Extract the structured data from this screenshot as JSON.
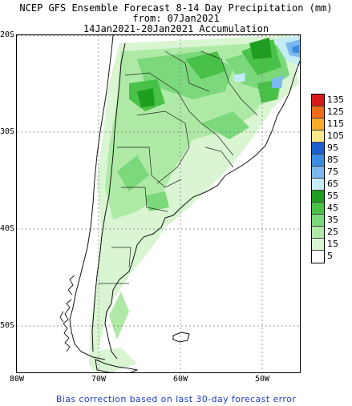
{
  "title": {
    "line1": "NCEP GFS Ensemble Forecast 8-14 Day Precipitation (mm)",
    "line2": "from: 07Jan2021",
    "line3": "14Jan2021-20Jan2021 Accumulation"
  },
  "lat_labels": [
    "20S",
    "30S",
    "40S",
    "50S"
  ],
  "lon_labels": [
    "80W",
    "70W",
    "60W",
    "50W"
  ],
  "legend": {
    "values": [
      "135",
      "125",
      "115",
      "105",
      "95",
      "85",
      "75",
      "65",
      "55",
      "45",
      "35",
      "25",
      "15",
      "5"
    ],
    "colors": [
      "#d61a1a",
      "#f26b17",
      "#f7ad2b",
      "#fbe88a",
      "#1c5fd0",
      "#3a8de3",
      "#7bb8f0",
      "#c4ecf6",
      "#1e9e1e",
      "#49c149",
      "#7bd87b",
      "#aeeaa6",
      "#d9f5d2",
      "#ffffff"
    ]
  },
  "footer": "Bias correction based on last 30-day forecast error",
  "colors": {
    "footer_text": "#1f3fcf",
    "frame": "#000000"
  }
}
